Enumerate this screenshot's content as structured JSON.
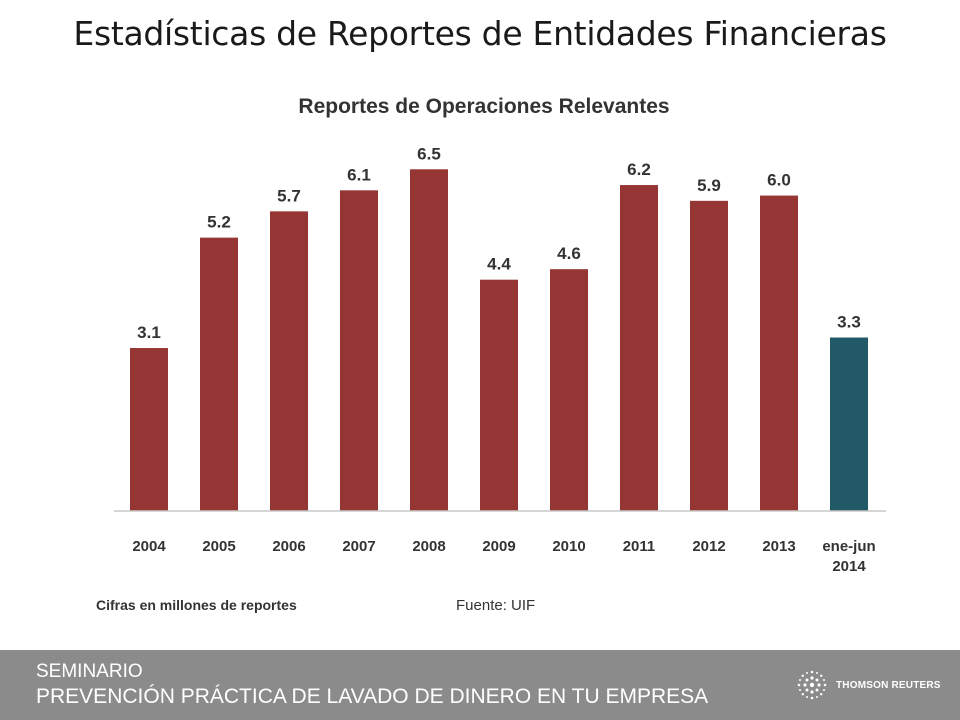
{
  "slide": {
    "title": "Estadísticas de Reportes de Entidades Financieras"
  },
  "chart_data": {
    "type": "bar",
    "title": "Reportes de Operaciones Relevantes",
    "categories": [
      "2004",
      "2005",
      "2006",
      "2007",
      "2008",
      "2009",
      "2010",
      "2011",
      "2012",
      "2013",
      "ene-jun 2014"
    ],
    "values": [
      3.1,
      5.2,
      5.7,
      6.1,
      6.5,
      4.4,
      4.6,
      6.2,
      5.9,
      6.0,
      3.3
    ],
    "value_labels": [
      "3.1",
      "5.2",
      "5.7",
      "6.1",
      "6.5",
      "4.4",
      "4.6",
      "6.2",
      "5.9",
      "6.0",
      "3.3"
    ],
    "bar_colors": [
      "#963634",
      "#963634",
      "#963634",
      "#963634",
      "#963634",
      "#963634",
      "#963634",
      "#963634",
      "#963634",
      "#963634",
      "#215967"
    ],
    "ylim": [
      0,
      7
    ],
    "grid": false,
    "note": "Cifras en millones de reportes",
    "source": "Fuente: UIF"
  },
  "footer": {
    "line1": "SEMINARIO",
    "line2": "PREVENCIÓN PRÁCTICA DE LAVADO DE DINERO EN TU EMPRESA",
    "logo_text": "THOMSON REUTERS",
    "logo_icon": "thomson-reuters-logo-icon"
  }
}
